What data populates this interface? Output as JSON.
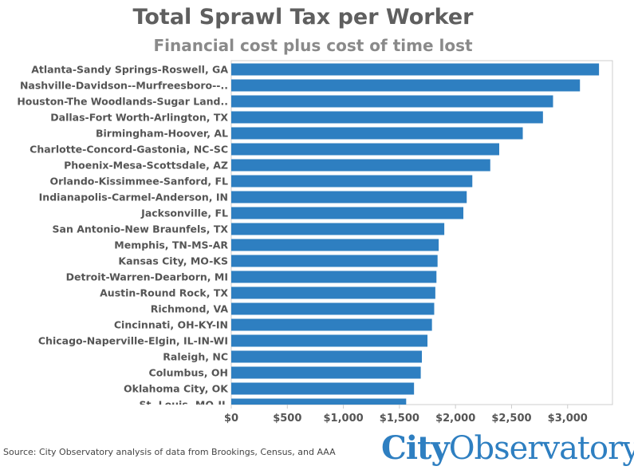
{
  "header": {
    "title": "Total Sprawl Tax per Worker",
    "subtitle": "Financial cost plus cost of time lost"
  },
  "footer": {
    "source": "Source: City Observatory analysis of data from Brookings, Census, and AAA",
    "logo_part1": "City",
    "logo_part2": "Observatory"
  },
  "colors": {
    "bar": "#2e7fc1",
    "axis": "#cccccc",
    "text": "#555555"
  },
  "chart_data": {
    "type": "bar",
    "orientation": "horizontal",
    "title": "Total Sprawl Tax per Worker",
    "subtitle": "Financial cost plus cost of time lost",
    "categories": [
      "Atlanta-Sandy Springs-Roswell, GA",
      "Nashville-Davidson--Murfreesboro--..",
      "Houston-The Woodlands-Sugar Land..",
      "Dallas-Fort Worth-Arlington, TX",
      "Birmingham-Hoover, AL",
      "Charlotte-Concord-Gastonia, NC-SC",
      "Phoenix-Mesa-Scottsdale, AZ",
      "Orlando-Kissimmee-Sanford, FL",
      "Indianapolis-Carmel-Anderson, IN",
      "Jacksonville, FL",
      "San Antonio-New Braunfels, TX",
      "Memphis, TN-MS-AR",
      "Kansas City, MO-KS",
      "Detroit-Warren-Dearborn, MI",
      "Austin-Round Rock, TX",
      "Richmond, VA",
      "Cincinnati, OH-KY-IN",
      "Chicago-Naperville-Elgin, IL-IN-WI",
      "Raleigh, NC",
      "Columbus, OH",
      "Oklahoma City, OK",
      "St. Louis, MO-IL"
    ],
    "values": [
      3280,
      3110,
      2870,
      2780,
      2600,
      2390,
      2310,
      2150,
      2100,
      2070,
      1900,
      1850,
      1840,
      1830,
      1820,
      1810,
      1790,
      1750,
      1700,
      1690,
      1630,
      1560
    ],
    "x_ticks": [
      0,
      500,
      1000,
      1500,
      2000,
      2500,
      3000
    ],
    "x_tick_labels": [
      "$0",
      "$500",
      "$1,000",
      "$1,500",
      "$2,000",
      "$2,500",
      "$3,000"
    ],
    "xlim": [
      0,
      3400
    ],
    "xlabel": "",
    "ylabel": "",
    "grid": false
  }
}
